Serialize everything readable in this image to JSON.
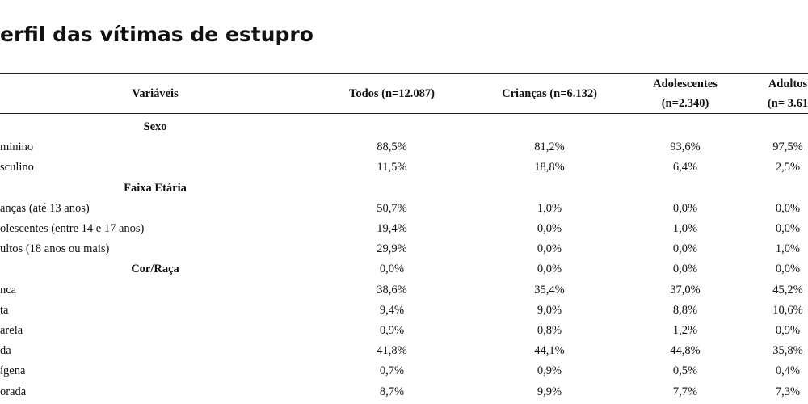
{
  "header": {
    "title": "erfil das vítimas de estupro"
  },
  "table": {
    "columns": [
      [
        "Variáveis"
      ],
      [
        "Todos (n=12.087)"
      ],
      [
        "Crianças (n=6.132)"
      ],
      [
        "Adolescentes",
        "(n=2.340)"
      ],
      [
        "Adultos",
        "(n= 3.61"
      ]
    ],
    "rows": [
      {
        "section": "Sexo"
      },
      {
        "label": "minino",
        "values": [
          "88,5%",
          "81,2%",
          "93,6%",
          "97,5%"
        ]
      },
      {
        "label": "sculino",
        "values": [
          "11,5%",
          "18,8%",
          "6,4%",
          "2,5%"
        ]
      },
      {
        "section": "Faixa Etária"
      },
      {
        "label": "anças (até 13 anos)",
        "values": [
          "50,7%",
          "1,0%",
          "0,0%",
          "0,0%"
        ]
      },
      {
        "label": "olescentes (entre 14 e 17 anos)",
        "values": [
          "19,4%",
          "0,0%",
          "1,0%",
          "0,0%"
        ]
      },
      {
        "label": "ultos (18 anos ou mais)",
        "values": [
          "29,9%",
          "0,0%",
          "0,0%",
          "1,0%"
        ]
      },
      {
        "section": "Cor/Raça",
        "values": [
          "0,0%",
          "0,0%",
          "0,0%",
          "0,0%"
        ]
      },
      {
        "label": "nca",
        "values": [
          "38,6%",
          "35,4%",
          "37,0%",
          "45,2%"
        ]
      },
      {
        "label": "ta",
        "values": [
          "9,4%",
          "9,0%",
          "8,8%",
          "10,6%"
        ]
      },
      {
        "label": "arela",
        "values": [
          "0,9%",
          "0,8%",
          "1,2%",
          "0,9%"
        ]
      },
      {
        "label": "da",
        "values": [
          "41,8%",
          "44,1%",
          "44,8%",
          "35,8%"
        ]
      },
      {
        "label": "ígena",
        "values": [
          "0,7%",
          "0,9%",
          "0,5%",
          "0,4%"
        ]
      },
      {
        "label": "orada",
        "values": [
          "8,7%",
          "9,9%",
          "7,7%",
          "7,3%"
        ]
      }
    ]
  }
}
